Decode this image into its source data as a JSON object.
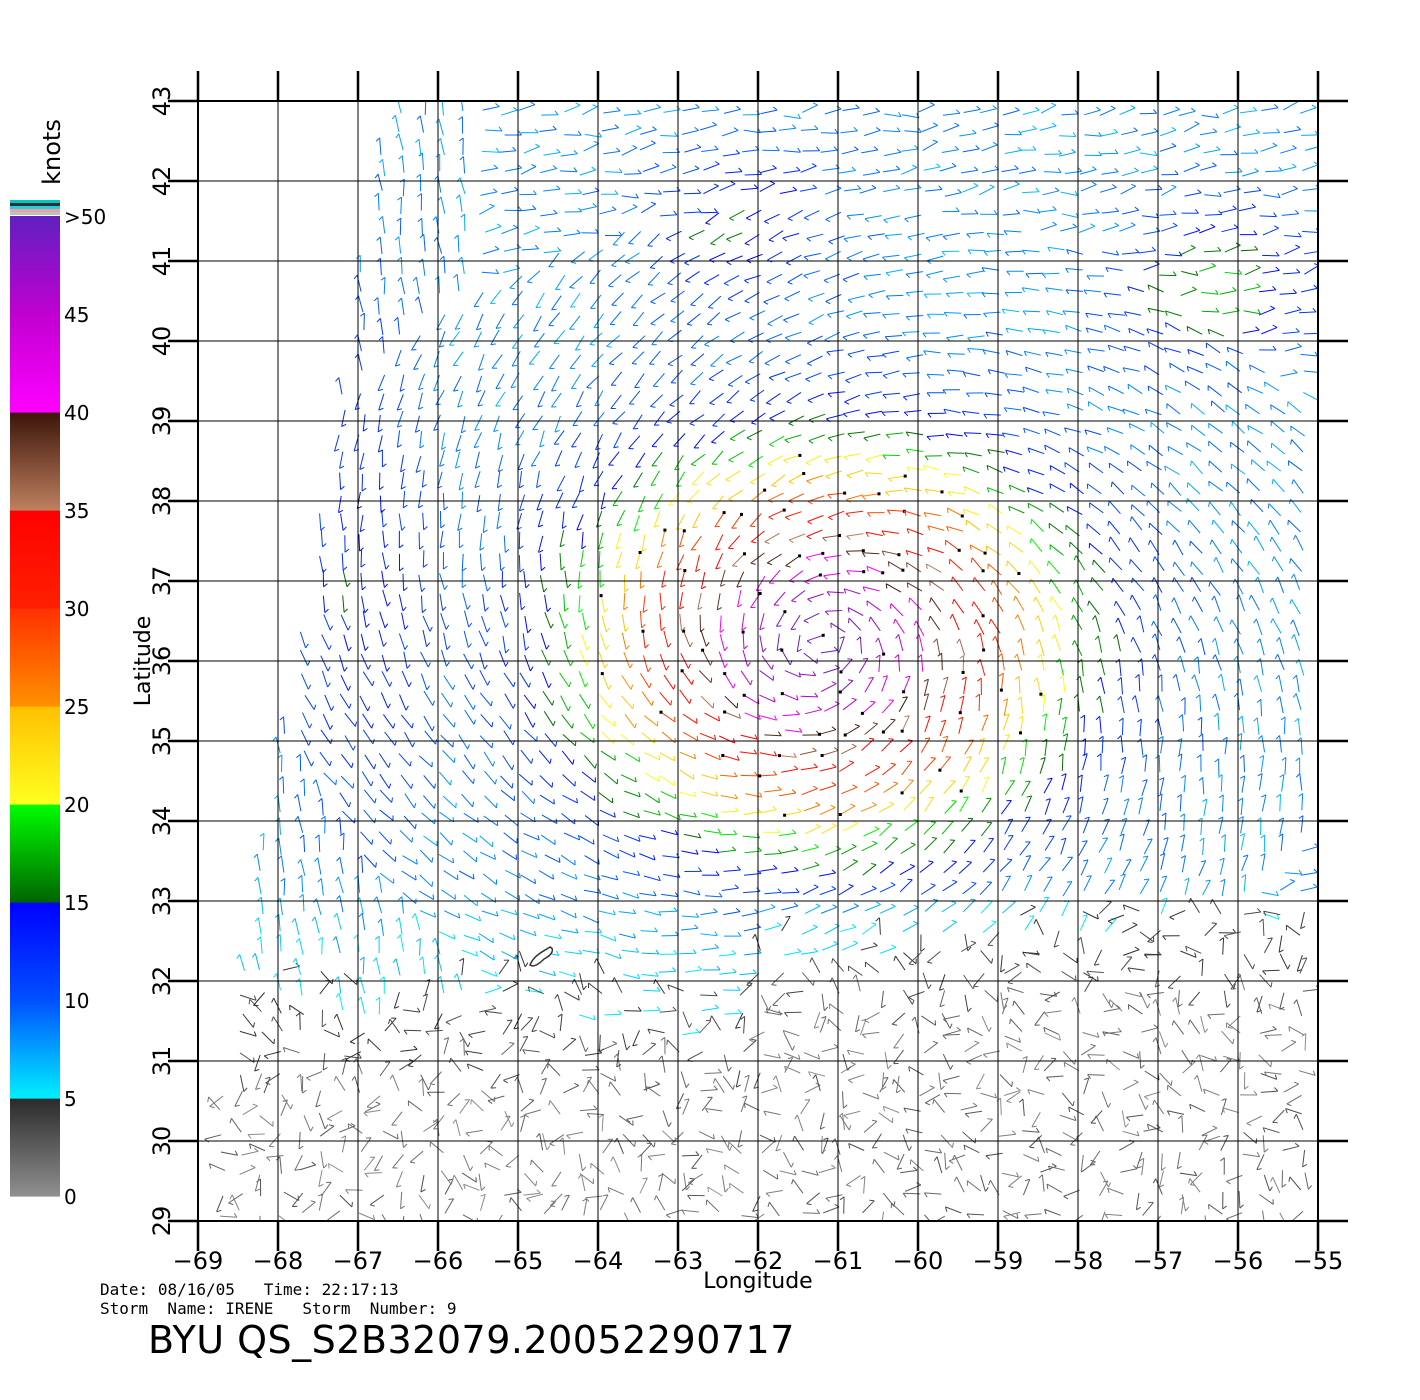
{
  "chart_data": {
    "type": "wind-vector-map",
    "xlabel": "Longitude",
    "ylabel": "Latitude",
    "xlim": [
      -69,
      -55
    ],
    "ylim": [
      29,
      43
    ],
    "xticks": [
      -69,
      -68,
      -67,
      -66,
      -65,
      -64,
      -63,
      -62,
      -61,
      -60,
      -59,
      -58,
      -57,
      -56,
      -55
    ],
    "yticks": [
      29,
      30,
      31,
      32,
      33,
      34,
      35,
      36,
      37,
      38,
      39,
      40,
      41,
      42,
      43
    ],
    "grid": true,
    "colorbar": {
      "unit": "knots",
      "tick_labels": [
        {
          "value": 0,
          "label": "0"
        },
        {
          "value": 5,
          "label": "5"
        },
        {
          "value": 10,
          "label": "10"
        },
        {
          "value": 15,
          "label": "15"
        },
        {
          "value": 20,
          "label": "20"
        },
        {
          "value": 25,
          "label": "25"
        },
        {
          "value": 30,
          "label": "30"
        },
        {
          "value": 35,
          "label": "35"
        },
        {
          "value": 40,
          "label": "40"
        },
        {
          "value": 45,
          "label": "45"
        },
        {
          "value": 50,
          "label": ">50"
        }
      ],
      "bands": [
        {
          "from": 0,
          "to": 5,
          "colors": [
            "#909090",
            "#2a2a2a"
          ]
        },
        {
          "from": 5,
          "to": 10,
          "colors": [
            "#00f0ff",
            "#0050ff"
          ]
        },
        {
          "from": 10,
          "to": 15,
          "colors": [
            "#0050ff",
            "#0000ff"
          ]
        },
        {
          "from": 15,
          "to": 20,
          "colors": [
            "#006400",
            "#00ff00"
          ]
        },
        {
          "from": 20,
          "to": 25,
          "colors": [
            "#ffff20",
            "#ffc000"
          ]
        },
        {
          "from": 25,
          "to": 30,
          "colors": [
            "#ff9000",
            "#ff3000"
          ]
        },
        {
          "from": 30,
          "to": 35,
          "colors": [
            "#ff2000",
            "#ff0000"
          ]
        },
        {
          "from": 35,
          "to": 40,
          "colors": [
            "#c08060",
            "#3a1408"
          ]
        },
        {
          "from": 40,
          "to": 45,
          "colors": [
            "#ff00ff",
            "#c000d0"
          ]
        },
        {
          "from": 45,
          "to": 50,
          "colors": [
            "#c000d0",
            "#6020c0"
          ]
        }
      ]
    },
    "storm_center": {
      "lon": -61.2,
      "lat": 36.2
    },
    "island_label_free_outline": {
      "lon": -64.7,
      "lat": 32.3
    }
  },
  "footer": {
    "date_label": "Date:",
    "date_value": "08/16/05",
    "time_label": "Time:",
    "time_value": "22:17:13",
    "storm_name_label": "Storm  Name:",
    "storm_name_value": "IRENE",
    "storm_number_label": "Storm  Number:",
    "storm_number_value": "9",
    "product": "BYU  QS_S2B32079.20052290717"
  }
}
